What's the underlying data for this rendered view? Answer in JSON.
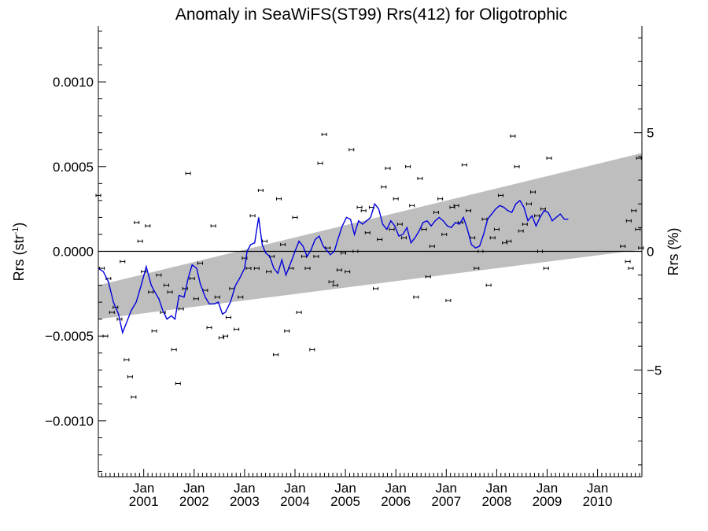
{
  "chart_data": {
    "type": "scatter",
    "title": "Anomaly in SeaWiFS(ST99) Rrs(412) for Oligotrophic",
    "ylabel_left": "Rrs (str",
    "ylabel_left_sup": "-1",
    "ylabel_left_close": ")",
    "ylabel_right": "Rrs (%)",
    "ylim_left": [
      -0.00133,
      0.00133
    ],
    "ylim_right": [
      -9.5,
      9.5
    ],
    "xlim": [
      2000.1,
      2010.88
    ],
    "yticks_left": [
      {
        "value": 0.001,
        "label": "0.0010"
      },
      {
        "value": 0.0005,
        "label": "0.0005"
      },
      {
        "value": 0.0,
        "label": "0.0000"
      },
      {
        "value": -0.0005,
        "label": "−0.0005"
      },
      {
        "value": -0.001,
        "label": "−0.0010"
      }
    ],
    "yticks_right": [
      {
        "value": 5,
        "label": "5"
      },
      {
        "value": 0,
        "label": "0"
      },
      {
        "value": -5,
        "label": "−5"
      }
    ],
    "xticks": [
      {
        "value": 2001.0,
        "label1": "Jan",
        "label2": "2001"
      },
      {
        "value": 2002.0,
        "label1": "Jan",
        "label2": "2002"
      },
      {
        "value": 2003.0,
        "label1": "Jan",
        "label2": "2003"
      },
      {
        "value": 2004.0,
        "label1": "Jan",
        "label2": "2004"
      },
      {
        "value": 2005.0,
        "label1": "Jan",
        "label2": "2005"
      },
      {
        "value": 2006.0,
        "label1": "Jan",
        "label2": "2006"
      },
      {
        "value": 2007.0,
        "label1": "Jan",
        "label2": "2007"
      },
      {
        "value": 2008.0,
        "label1": "Jan",
        "label2": "2008"
      },
      {
        "value": 2009.0,
        "label1": "Jan",
        "label2": "2009"
      },
      {
        "value": 2010.0,
        "label1": "Jan",
        "label2": "2010"
      }
    ],
    "band": {
      "x": [
        2000.1,
        2010.88
      ],
      "upper": [
        -0.0002,
        0.00058
      ],
      "lower": [
        -0.0004,
        1e-05
      ]
    },
    "points": [
      [
        2000.1,
        0.00033
      ],
      [
        2000.17,
        -0.0001
      ],
      [
        2000.24,
        -0.0005
      ],
      [
        2000.3,
        -0.00016
      ],
      [
        2000.37,
        -0.00036
      ],
      [
        2000.44,
        -0.00033
      ],
      [
        2000.52,
        -0.0004
      ],
      [
        2000.58,
        -6e-05
      ],
      [
        2000.66,
        -0.00064
      ],
      [
        2000.73,
        -0.00074
      ],
      [
        2000.8,
        -0.00086
      ],
      [
        2000.86,
        0.00017
      ],
      [
        2000.93,
        6e-05
      ],
      [
        2001.0,
        -0.00012
      ],
      [
        2001.08,
        0.00015
      ],
      [
        2001.14,
        -0.00024
      ],
      [
        2001.21,
        -0.00047
      ],
      [
        2001.3,
        -0.00014
      ],
      [
        2001.38,
        -0.00036
      ],
      [
        2001.45,
        -0.0002
      ],
      [
        2001.52,
        -0.00024
      ],
      [
        2001.6,
        -0.00058
      ],
      [
        2001.68,
        -0.00078
      ],
      [
        2001.74,
        -0.00034
      ],
      [
        2001.82,
        -0.00022
      ],
      [
        2001.88,
        0.00046
      ],
      [
        2001.96,
        -0.00016
      ],
      [
        2002.04,
        -0.00028
      ],
      [
        2002.12,
        -7e-05
      ],
      [
        2002.22,
        -0.00023
      ],
      [
        2002.3,
        -0.00045
      ],
      [
        2002.38,
        0.00015
      ],
      [
        2002.46,
        -0.00027
      ],
      [
        2002.54,
        -0.00051
      ],
      [
        2002.62,
        -0.0005
      ],
      [
        2002.68,
        -0.00039
      ],
      [
        2002.75,
        -0.00022
      ],
      [
        2002.84,
        -0.00046
      ],
      [
        2002.92,
        -0.00027
      ],
      [
        2003.0,
        -4e-05
      ],
      [
        2003.08,
        -0.0001
      ],
      [
        2003.16,
        0.00021
      ],
      [
        2003.24,
        -0.0001
      ],
      [
        2003.32,
        0.00036
      ],
      [
        2003.4,
        6e-05
      ],
      [
        2003.48,
        -0.00012
      ],
      [
        2003.54,
        -3e-05
      ],
      [
        2003.62,
        -0.00061
      ],
      [
        2003.68,
        0.00031
      ],
      [
        2003.76,
        4e-05
      ],
      [
        2003.84,
        -0.00047
      ],
      [
        2003.92,
        -0.0001
      ],
      [
        2004.0,
        0.0002
      ],
      [
        2004.08,
        -0.00036
      ],
      [
        2004.18,
        -3e-05
      ],
      [
        2004.25,
        -0.0001
      ],
      [
        2004.34,
        -0.00058
      ],
      [
        2004.42,
        -3e-05
      ],
      [
        2004.5,
        0.00052
      ],
      [
        2004.58,
        0.00069
      ],
      [
        2004.65,
        2e-05
      ],
      [
        2004.72,
        -0.00018
      ],
      [
        2004.8,
        -0.0002
      ],
      [
        2004.88,
        -0.00011
      ],
      [
        2004.96,
        -1e-05
      ],
      [
        2005.04,
        -0.00012
      ],
      [
        2005.12,
        0.0006
      ],
      [
        2005.2,
        0.0
      ],
      [
        2005.28,
        0.00026
      ],
      [
        2005.36,
        0.00024
      ],
      [
        2005.44,
        0.00011
      ],
      [
        2005.52,
        0.00026
      ],
      [
        2005.6,
        -0.00022
      ],
      [
        2005.68,
        7e-05
      ],
      [
        2005.76,
        0.00038
      ],
      [
        2005.84,
        0.00049
      ],
      [
        2005.92,
        0.00013
      ],
      [
        2006.0,
        0.00031
      ],
      [
        2006.08,
        0.00016
      ],
      [
        2006.16,
        8e-05
      ],
      [
        2006.24,
        0.0005
      ],
      [
        2006.32,
        0.00027
      ],
      [
        2006.4,
        -0.00027
      ],
      [
        2006.48,
        0.00043
      ],
      [
        2006.56,
        0.00013
      ],
      [
        2006.64,
        -0.00015
      ],
      [
        2006.72,
        3e-05
      ],
      [
        2006.8,
        0.00023
      ],
      [
        2006.88,
        0.00031
      ],
      [
        2006.96,
        0.0001
      ],
      [
        2007.04,
        -0.00029
      ],
      [
        2007.12,
        0.00026
      ],
      [
        2007.2,
        0.00027
      ],
      [
        2007.28,
        0.00017
      ],
      [
        2007.36,
        0.00051
      ],
      [
        2007.44,
        0.00024
      ],
      [
        2007.52,
        8e-05
      ],
      [
        2007.6,
        -0.0001
      ],
      [
        2007.68,
        0.0
      ],
      [
        2007.76,
        0.00019
      ],
      [
        2007.84,
        -0.0002
      ],
      [
        2007.92,
        8e-05
      ],
      [
        2008.0,
        0.00013
      ],
      [
        2008.08,
        0.00033
      ],
      [
        2008.16,
        5e-05
      ],
      [
        2008.24,
        6e-05
      ],
      [
        2008.32,
        0.00068
      ],
      [
        2008.4,
        0.0005
      ],
      [
        2008.48,
        0.00012
      ],
      [
        2008.56,
        0.00016
      ],
      [
        2008.64,
        0.00028
      ],
      [
        2008.72,
        0.00035
      ],
      [
        2008.8,
        0.00021
      ],
      [
        2008.86,
        0.0
      ],
      [
        2008.92,
        0.00025
      ],
      [
        2008.98,
        -0.0001
      ],
      [
        2009.04,
        0.00055
      ],
      [
        2010.5,
        3e-05
      ],
      [
        2010.62,
        0.00018
      ],
      [
        2010.72,
        0.00024
      ],
      [
        2010.8,
        0.00013
      ],
      [
        2010.86,
        2e-05
      ],
      [
        2010.6,
        -6e-05
      ],
      [
        2010.66,
        -0.0001
      ],
      [
        2010.82,
        0.00055
      ]
    ],
    "line": [
      [
        2000.1,
        -0.0001
      ],
      [
        2000.2,
        -0.00012
      ],
      [
        2000.3,
        -0.00018
      ],
      [
        2000.4,
        -0.0003
      ],
      [
        2000.5,
        -0.00037
      ],
      [
        2000.58,
        -0.00048
      ],
      [
        2000.66,
        -0.00042
      ],
      [
        2000.75,
        -0.00035
      ],
      [
        2000.85,
        -0.0003
      ],
      [
        2000.95,
        -0.0002
      ],
      [
        2001.05,
        -9e-05
      ],
      [
        2001.15,
        -0.0002
      ],
      [
        2001.22,
        -0.00024
      ],
      [
        2001.3,
        -0.00028
      ],
      [
        2001.38,
        -0.00035
      ],
      [
        2001.46,
        -0.0004
      ],
      [
        2001.55,
        -0.00038
      ],
      [
        2001.62,
        -0.0004
      ],
      [
        2001.7,
        -0.00026
      ],
      [
        2001.8,
        -0.00027
      ],
      [
        2001.88,
        -0.00016
      ],
      [
        2001.96,
        -8e-05
      ],
      [
        2002.05,
        -0.0001
      ],
      [
        2002.12,
        -0.00019
      ],
      [
        2002.22,
        -0.00027
      ],
      [
        2002.3,
        -0.00031
      ],
      [
        2002.4,
        -0.00031
      ],
      [
        2002.48,
        -0.0003
      ],
      [
        2002.56,
        -0.00037
      ],
      [
        2002.62,
        -0.00036
      ],
      [
        2002.72,
        -0.0003
      ],
      [
        2002.82,
        -0.0002
      ],
      [
        2002.9,
        -0.00016
      ],
      [
        2003.0,
        -0.0001
      ],
      [
        2003.05,
        0.0
      ],
      [
        2003.12,
        4e-05
      ],
      [
        2003.2,
        5e-05
      ],
      [
        2003.28,
        0.0002
      ],
      [
        2003.35,
        4e-05
      ],
      [
        2003.42,
        -1e-05
      ],
      [
        2003.5,
        -3e-05
      ],
      [
        2003.58,
        -0.0001
      ],
      [
        2003.66,
        -0.00013
      ],
      [
        2003.74,
        -5e-05
      ],
      [
        2003.82,
        -0.00014
      ],
      [
        2003.9,
        -8e-05
      ],
      [
        2004.0,
        0.0
      ],
      [
        2004.08,
        6e-05
      ],
      [
        2004.16,
        3e-05
      ],
      [
        2004.24,
        -3e-05
      ],
      [
        2004.32,
        1e-05
      ],
      [
        2004.4,
        7e-05
      ],
      [
        2004.48,
        9e-05
      ],
      [
        2004.56,
        3e-05
      ],
      [
        2004.62,
        1e-05
      ],
      [
        2004.7,
        -2e-05
      ],
      [
        2004.78,
        0.0
      ],
      [
        2004.86,
        8e-05
      ],
      [
        2004.94,
        0.00015
      ],
      [
        2005.02,
        0.0002
      ],
      [
        2005.1,
        0.00019
      ],
      [
        2005.18,
        0.0001
      ],
      [
        2005.26,
        0.00018
      ],
      [
        2005.34,
        0.00016
      ],
      [
        2005.42,
        0.00018
      ],
      [
        2005.5,
        0.0002
      ],
      [
        2005.58,
        0.00028
      ],
      [
        2005.66,
        0.00025
      ],
      [
        2005.74,
        0.00016
      ],
      [
        2005.82,
        0.00013
      ],
      [
        2005.9,
        0.00018
      ],
      [
        2005.98,
        0.00015
      ],
      [
        2006.06,
        9e-05
      ],
      [
        2006.14,
        0.0001
      ],
      [
        2006.22,
        0.00014
      ],
      [
        2006.3,
        5e-05
      ],
      [
        2006.38,
        8e-05
      ],
      [
        2006.46,
        0.00012
      ],
      [
        2006.54,
        0.00017
      ],
      [
        2006.62,
        0.00018
      ],
      [
        2006.7,
        0.00015
      ],
      [
        2006.78,
        0.00018
      ],
      [
        2006.86,
        0.0002
      ],
      [
        2006.94,
        0.00018
      ],
      [
        2007.02,
        0.00015
      ],
      [
        2007.1,
        0.00014
      ],
      [
        2007.18,
        0.00017
      ],
      [
        2007.26,
        0.00016
      ],
      [
        2007.34,
        0.0002
      ],
      [
        2007.42,
        0.00013
      ],
      [
        2007.5,
        4e-05
      ],
      [
        2007.58,
        2e-05
      ],
      [
        2007.66,
        3e-05
      ],
      [
        2007.74,
        0.0001
      ],
      [
        2007.82,
        0.00019
      ],
      [
        2007.9,
        0.00022
      ],
      [
        2007.98,
        0.00025
      ],
      [
        2008.06,
        0.00027
      ],
      [
        2008.14,
        0.00026
      ],
      [
        2008.22,
        0.00024
      ],
      [
        2008.3,
        0.00023
      ],
      [
        2008.38,
        0.00028
      ],
      [
        2008.46,
        0.0003
      ],
      [
        2008.54,
        0.00026
      ],
      [
        2008.62,
        0.00018
      ],
      [
        2008.7,
        0.00021
      ],
      [
        2008.78,
        0.00015
      ],
      [
        2008.86,
        0.0002
      ],
      [
        2008.94,
        0.00024
      ],
      [
        2009.02,
        0.00023
      ],
      [
        2009.1,
        0.00018
      ],
      [
        2009.18,
        0.0002
      ],
      [
        2009.26,
        0.00022
      ],
      [
        2009.34,
        0.00019
      ],
      [
        2009.42,
        0.00019
      ]
    ]
  }
}
